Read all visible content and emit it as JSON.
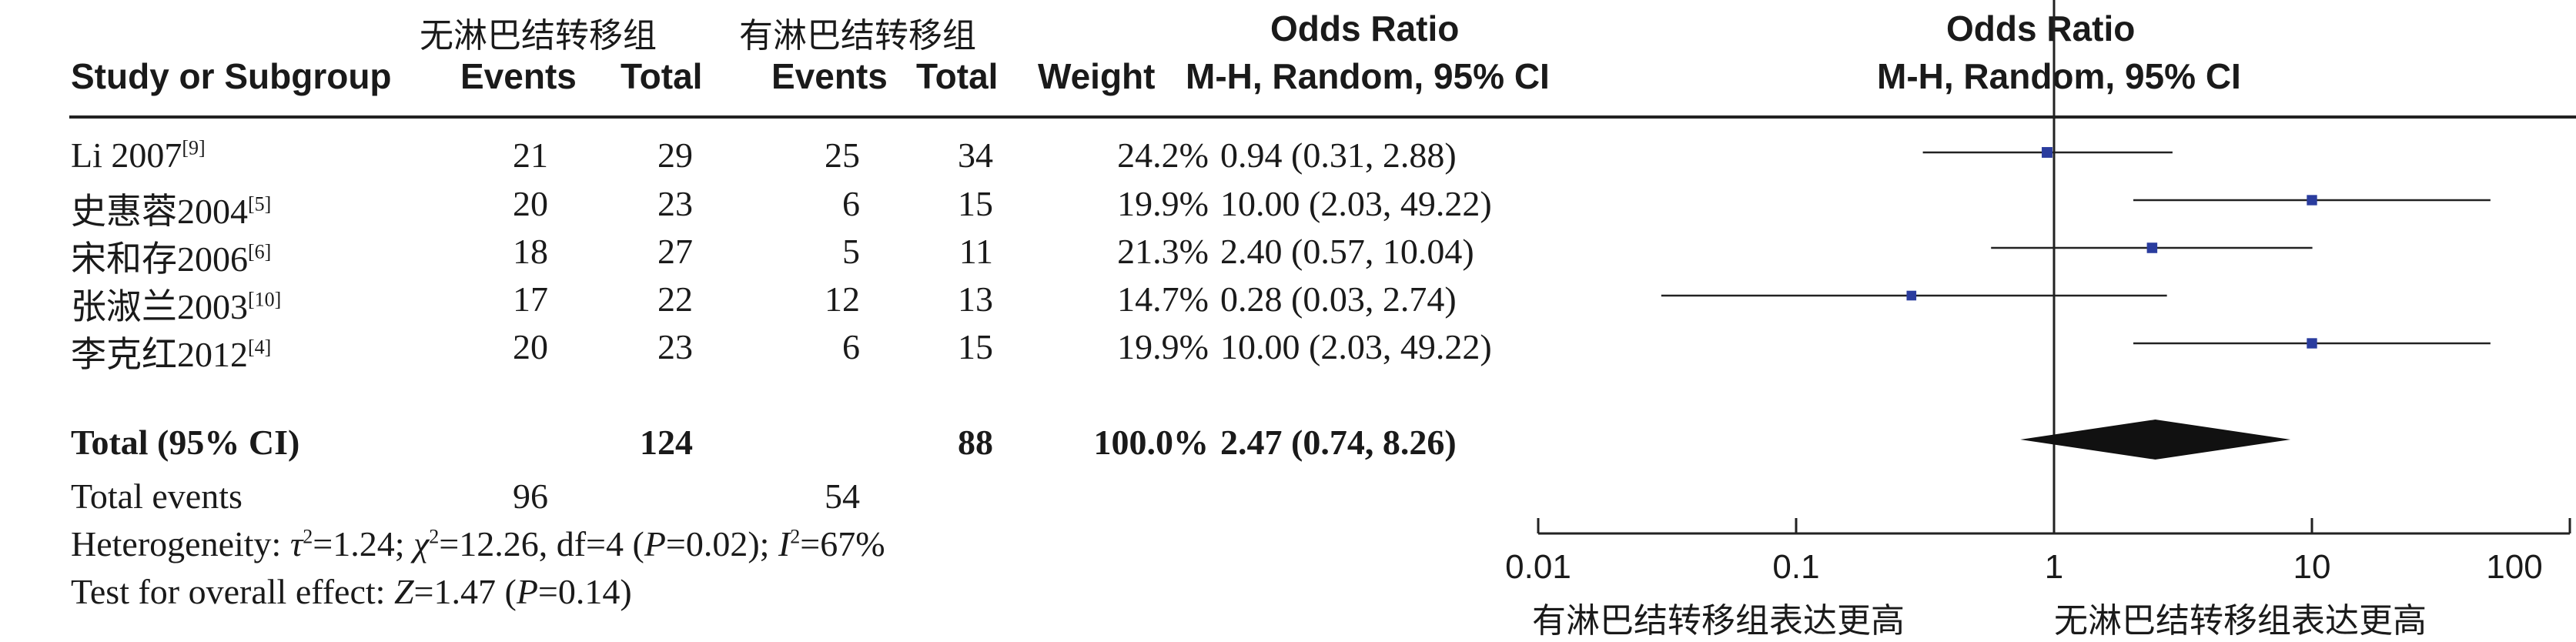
{
  "header": {
    "group1_label": "无淋巴结转移组",
    "group2_label": "有淋巴结转移组",
    "col_study": "Study or Subgroup",
    "col_events1": "Events",
    "col_total1": "Total",
    "col_events2": "Events",
    "col_total2": "Total",
    "col_weight": "Weight",
    "col_or_title": "Odds Ratio",
    "col_or_method": "M-H, Random, 95% CI",
    "plot_title": "Odds Ratio",
    "plot_method": "M-H, Random, 95% CI"
  },
  "studies": [
    {
      "name": "Li 2007",
      "ref": "[9]",
      "events1": "21",
      "total1": "29",
      "events2": "25",
      "total2": "34",
      "weight": "24.2%",
      "ci_text": "0.94 (0.31, 2.88)"
    },
    {
      "name": "史惠蓉2004",
      "ref": "[5]",
      "events1": "20",
      "total1": "23",
      "events2": "6",
      "total2": "15",
      "weight": "19.9%",
      "ci_text": "10.00 (2.03, 49.22)"
    },
    {
      "name": "宋和存2006",
      "ref": "[6]",
      "events1": "18",
      "total1": "27",
      "events2": "5",
      "total2": "11",
      "weight": "21.3%",
      "ci_text": "2.40 (0.57, 10.04)"
    },
    {
      "name": "张淑兰2003",
      "ref": "[10]",
      "events1": "17",
      "total1": "22",
      "events2": "12",
      "total2": "13",
      "weight": "14.7%",
      "ci_text": "0.28 (0.03, 2.74)"
    },
    {
      "name": "李克红2012",
      "ref": "[4]",
      "events1": "20",
      "total1": "23",
      "events2": "6",
      "total2": "15",
      "weight": "19.9%",
      "ci_text": "10.00 (2.03, 49.22)"
    }
  ],
  "total": {
    "label": "Total (95% CI)",
    "total1": "124",
    "total2": "88",
    "weight": "100.0%",
    "ci_text": "2.47 (0.74, 8.26)"
  },
  "events": {
    "label": "Total events",
    "events1": "96",
    "events2": "54"
  },
  "heterogeneity": {
    "prefix": "Heterogeneity: ",
    "tau_sym": "τ",
    "tau_val": "=1.24; ",
    "chi_sym": "χ",
    "chi_val": "=12.26, df=4 (",
    "p_sym": "P",
    "p_val": "=0.02); ",
    "i_sym": "I",
    "i_val": "=67%",
    "sup": "2"
  },
  "overall": {
    "prefix": "Test for overall effect: ",
    "z_sym": "Z",
    "z_val": "=1.47 (",
    "p_sym": "P",
    "p_val": "=0.14)"
  },
  "axis": {
    "ticks": [
      "0.01",
      "0.1",
      "1",
      "10",
      "100"
    ],
    "left_label": "有淋巴结转移组表达更高",
    "right_label": "无淋巴结转移组表达更高"
  },
  "chart_data": {
    "type": "forest",
    "x_scale": "log",
    "xlim": [
      0.01,
      100
    ],
    "studies": [
      {
        "name": "Li 2007",
        "or": 0.94,
        "lower": 0.31,
        "upper": 2.88,
        "weight": 24.2
      },
      {
        "name": "史惠蓉2004",
        "or": 10.0,
        "lower": 2.03,
        "upper": 49.22,
        "weight": 19.9
      },
      {
        "name": "宋和存2006",
        "or": 2.4,
        "lower": 0.57,
        "upper": 10.04,
        "weight": 21.3
      },
      {
        "name": "张淑兰2003",
        "or": 0.28,
        "lower": 0.03,
        "upper": 2.74,
        "weight": 14.7
      },
      {
        "name": "李克红2012",
        "or": 10.0,
        "lower": 2.03,
        "upper": 49.22,
        "weight": 19.9
      }
    ],
    "pooled": {
      "or": 2.47,
      "lower": 0.74,
      "upper": 8.26
    },
    "colors": {
      "marker": "#2a3c9e",
      "diamond": "#111111",
      "line": "#222222"
    }
  }
}
